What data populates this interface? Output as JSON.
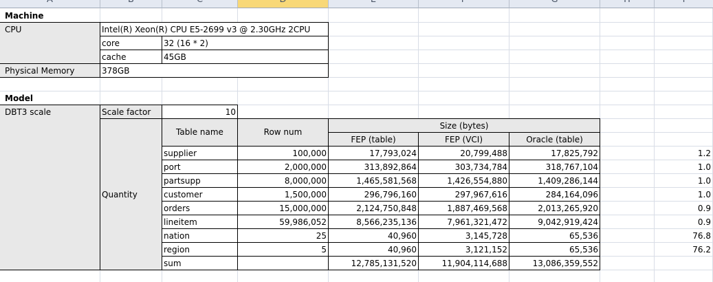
{
  "columns": [
    "A",
    "B",
    "C",
    "D",
    "E",
    "F",
    "G",
    "H",
    "I"
  ],
  "machine": {
    "title": "Machine",
    "cpu_label": "CPU",
    "cpu_value": "Intel(R) Xeon(R) CPU E5-2699 v3 @ 2.30GHz 2CPU",
    "core_label": "core",
    "core_value": "32 (16 * 2)",
    "cache_label": "cache",
    "cache_value": "45GB",
    "memory_label": "Physical Memory",
    "memory_value": "378GB"
  },
  "model": {
    "title": "Model",
    "dbt3_label": "DBT3 scale",
    "scale_factor_label": "Scale factor",
    "scale_factor_value": "10",
    "quantity_label": "Quantity",
    "headers": {
      "table_name": "Table name",
      "row_num": "Row num",
      "size": "Size (bytes)",
      "fep_table": "FEP (table)",
      "fep_vci": "FEP (VCI)",
      "oracle_table": "Oracle (table)"
    },
    "rows": [
      {
        "name": "supplier",
        "rows": "100,000",
        "fep_table": "17,793,024",
        "fep_vci": "20,799,488",
        "oracle": "17,825,792",
        "ratio": "1.2"
      },
      {
        "name": "port",
        "rows": "2,000,000",
        "fep_table": "313,892,864",
        "fep_vci": "303,734,784",
        "oracle": "318,767,104",
        "ratio": "1.0"
      },
      {
        "name": "partsupp",
        "rows": "8,000,000",
        "fep_table": "1,465,581,568",
        "fep_vci": "1,426,554,880",
        "oracle": "1,409,286,144",
        "ratio": "1.0"
      },
      {
        "name": "customer",
        "rows": "1,500,000",
        "fep_table": "296,796,160",
        "fep_vci": "297,967,616",
        "oracle": "284,164,096",
        "ratio": "1.0"
      },
      {
        "name": "orders",
        "rows": "15,000,000",
        "fep_table": "2,124,750,848",
        "fep_vci": "1,887,469,568",
        "oracle": "2,013,265,920",
        "ratio": "0.9"
      },
      {
        "name": "lineitem",
        "rows": "59,986,052",
        "fep_table": "8,566,235,136",
        "fep_vci": "7,961,321,472",
        "oracle": "9,042,919,424",
        "ratio": "0.9"
      },
      {
        "name": "nation",
        "rows": "25",
        "fep_table": "40,960",
        "fep_vci": "3,145,728",
        "oracle": "65,536",
        "ratio": "76.8"
      },
      {
        "name": "region",
        "rows": "5",
        "fep_table": "40,960",
        "fep_vci": "3,121,152",
        "oracle": "65,536",
        "ratio": "76.2"
      }
    ],
    "sum": {
      "name": "sum",
      "fep_table": "12,785,131,520",
      "fep_vci": "11,904,114,688",
      "oracle": "13,086,359,552"
    }
  }
}
